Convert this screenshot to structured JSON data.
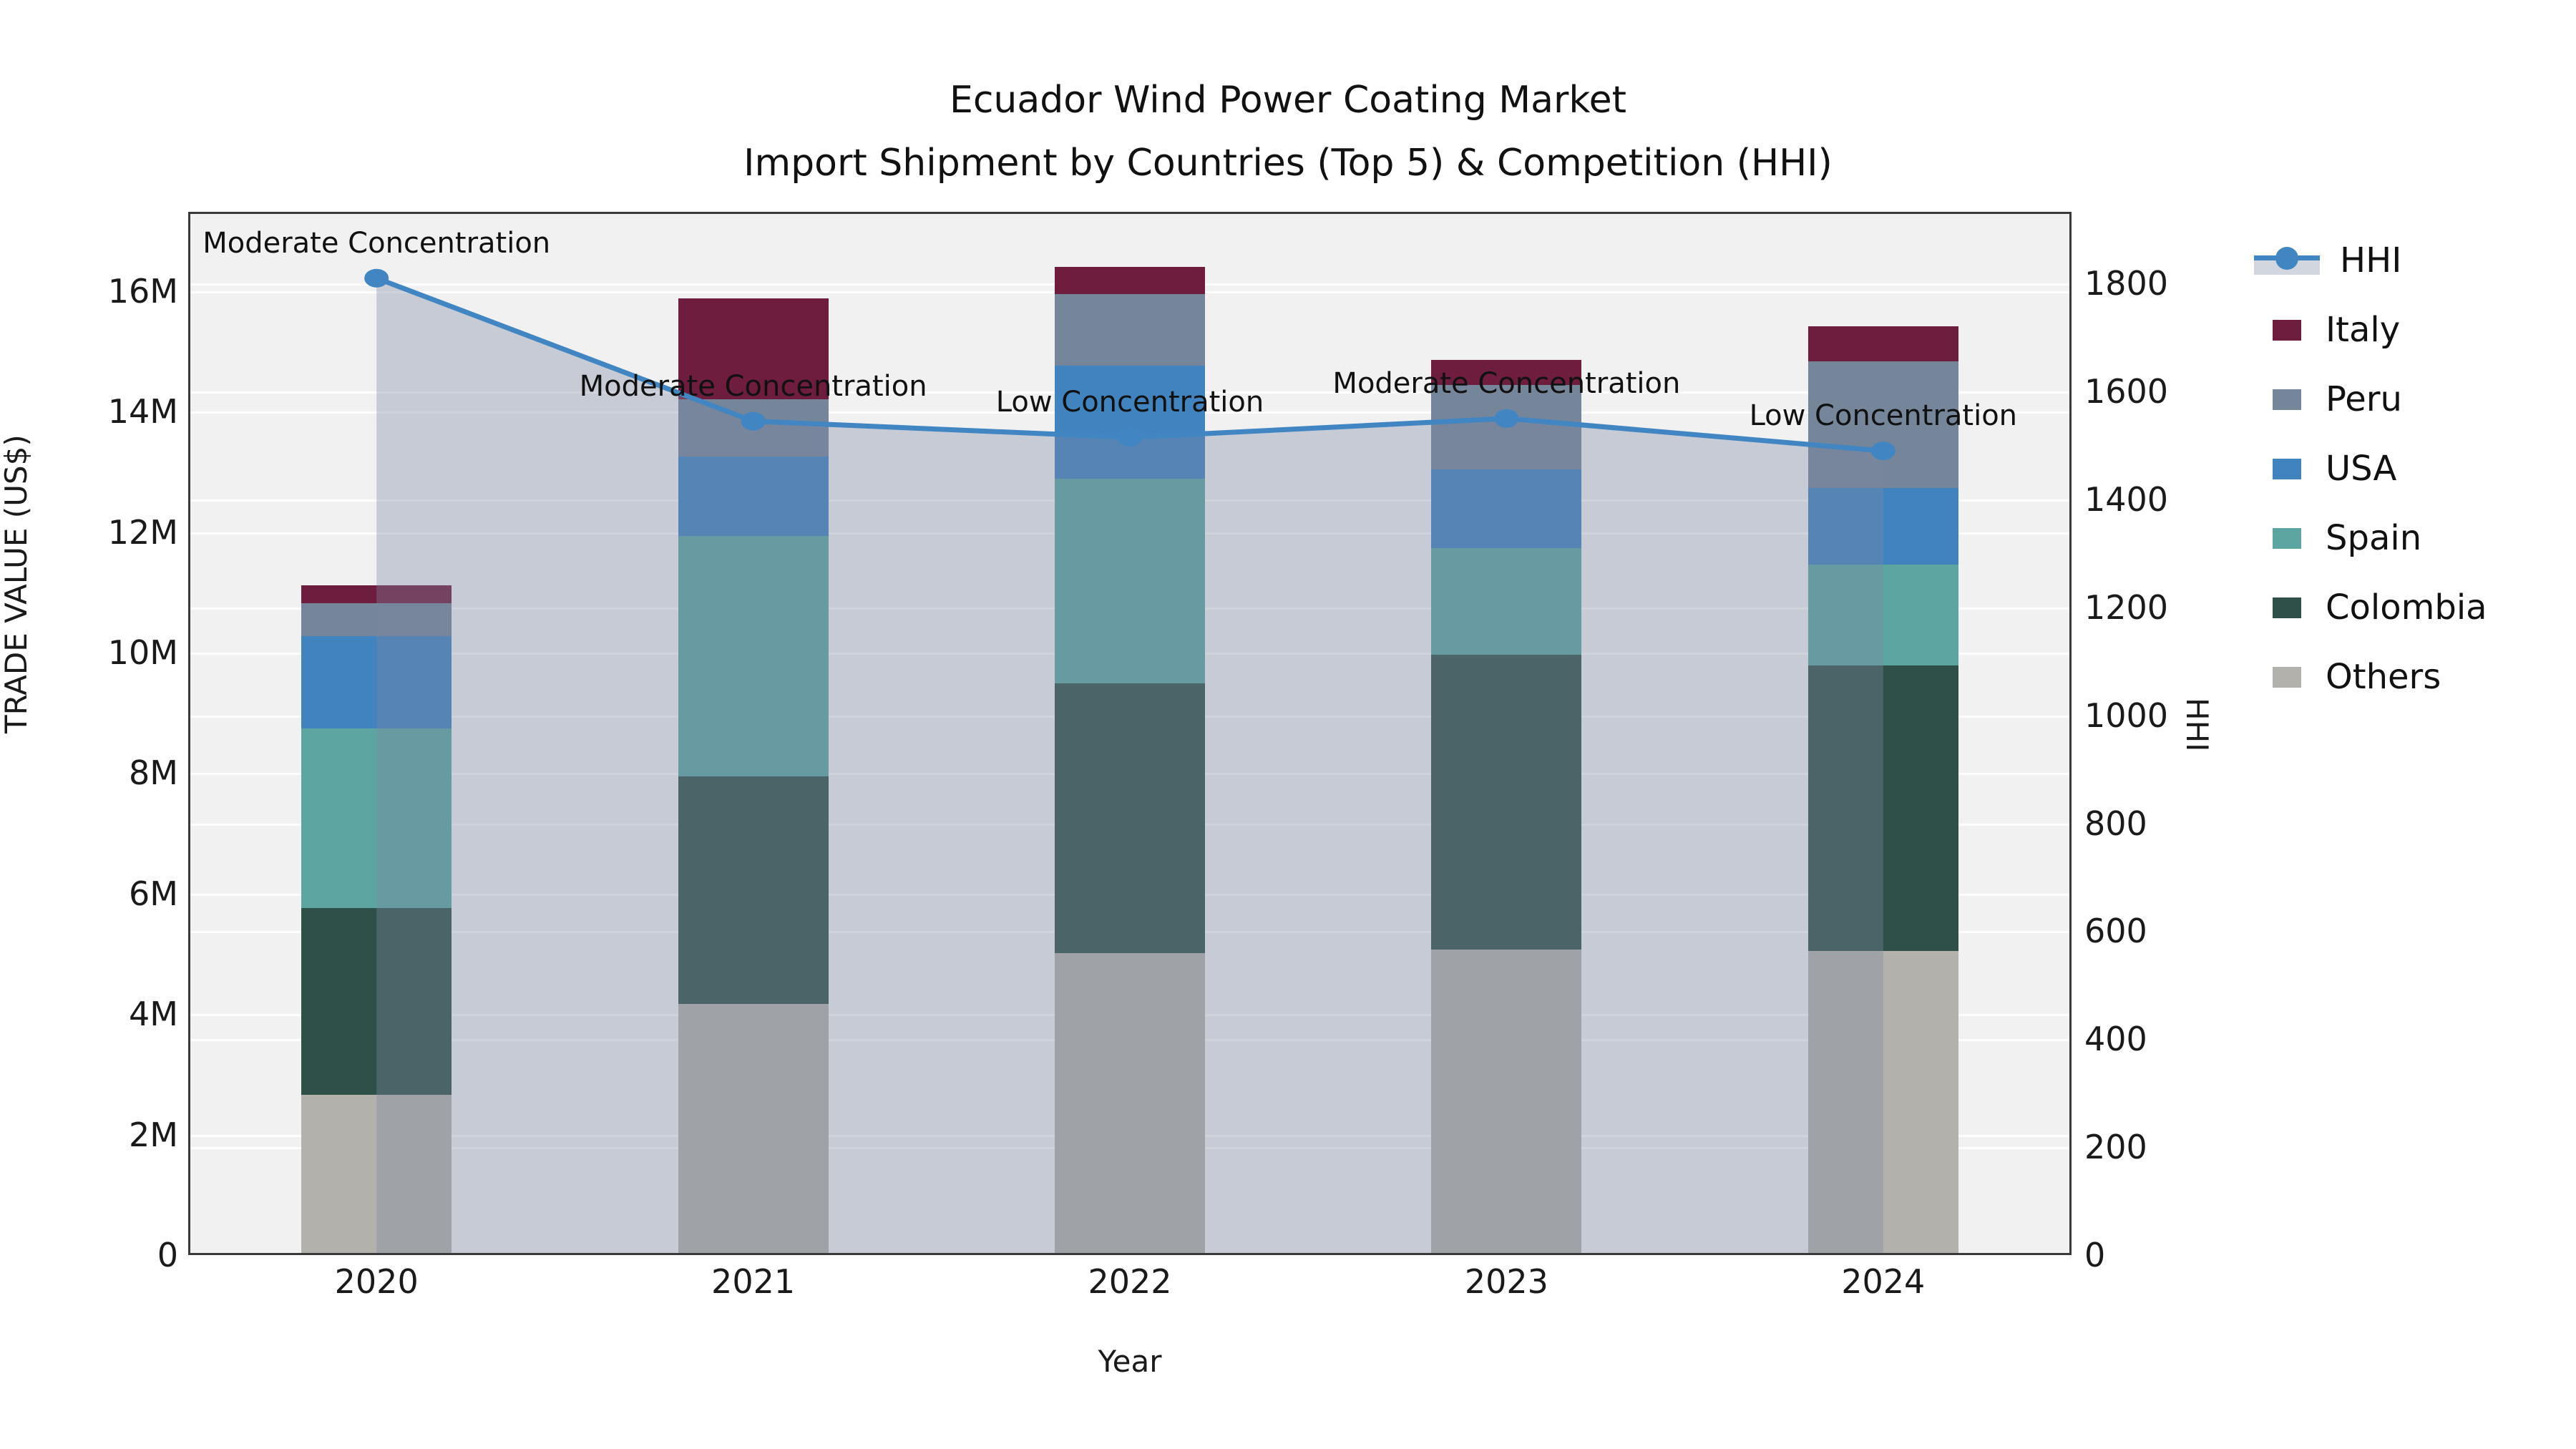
{
  "title": {
    "line1": "Ecuador Wind Power Coating Market",
    "line2": "Import Shipment by Countries (Top 5) & Competition (HHI)"
  },
  "axes": {
    "y_left": {
      "label": "TRADE VALUE (US$)",
      "tick_labels": [
        "0",
        "2M",
        "4M",
        "6M",
        "8M",
        "10M",
        "12M",
        "14M",
        "16M"
      ],
      "tick_values_m": [
        0,
        2,
        4,
        6,
        8,
        10,
        12,
        14,
        16
      ]
    },
    "y_right": {
      "label": "HHI",
      "tick_labels": [
        "0",
        "200",
        "400",
        "600",
        "800",
        "1000",
        "1200",
        "1400",
        "1600",
        "1800"
      ],
      "tick_values": [
        0,
        200,
        400,
        600,
        800,
        1000,
        1200,
        1400,
        1600,
        1800
      ]
    },
    "x": {
      "label": "Year",
      "categories": [
        "2020",
        "2021",
        "2022",
        "2023",
        "2024"
      ]
    }
  },
  "chart_data": {
    "type": "combo: stacked-bar + line-with-area",
    "x": [
      "2020",
      "2021",
      "2022",
      "2023",
      "2024"
    ],
    "bar_units": "million US$ (left axis)",
    "bar_series": [
      {
        "name": "Others",
        "color": "#b3b1ab",
        "values": [
          2.66,
          4.17,
          5.01,
          5.07,
          5.05
        ]
      },
      {
        "name": "Colombia",
        "color": "#2e5048",
        "values": [
          3.1,
          3.77,
          4.48,
          4.89,
          4.74
        ]
      },
      {
        "name": "Spain",
        "color": "#5ca5a1",
        "values": [
          2.98,
          4.0,
          3.4,
          1.77,
          1.67
        ]
      },
      {
        "name": "USA",
        "color": "#4183bf",
        "values": [
          1.53,
          1.31,
          1.87,
          1.31,
          1.27
        ]
      },
      {
        "name": "Peru",
        "color": "#75869a",
        "values": [
          0.55,
          0.95,
          1.19,
          1.4,
          2.1
        ]
      },
      {
        "name": "Italy",
        "color": "#6e1d3e",
        "values": [
          0.3,
          1.68,
          0.45,
          0.42,
          0.59
        ]
      }
    ],
    "bar_totals_m": [
      11.12,
      15.88,
      16.4,
      14.86,
      15.42
    ],
    "line_series": {
      "name": "HHI",
      "axis": "right",
      "color": "#4186c2",
      "area_fill": "rgba(125,135,160,0.36)",
      "values": [
        1810,
        1545,
        1515,
        1550,
        1490
      ]
    },
    "annotations": [
      "Moderate Concentration",
      "Moderate Concentration",
      "Low Concentration",
      "Moderate Concentration",
      "Low Concentration"
    ],
    "ylim_left_m": [
      0,
      17.3
    ],
    "ylim_right": [
      0,
      1933
    ],
    "grid": "both-axes horizontal, white on light gray panel",
    "legend_position": "right, outside plot"
  },
  "legend": {
    "entries": [
      "HHI",
      "Italy",
      "Peru",
      "USA",
      "Spain",
      "Colombia",
      "Others"
    ],
    "hhi_band_color": "#d2d6de"
  },
  "colors": {
    "panel_bg": "#f1f1f2",
    "figure_bg": "#ffffff",
    "hhi_line": "#4186c2",
    "hhi_area": "rgba(125,135,160,0.36)",
    "axis_text": "#1a1a1a",
    "spine": "#3a3a3c"
  }
}
